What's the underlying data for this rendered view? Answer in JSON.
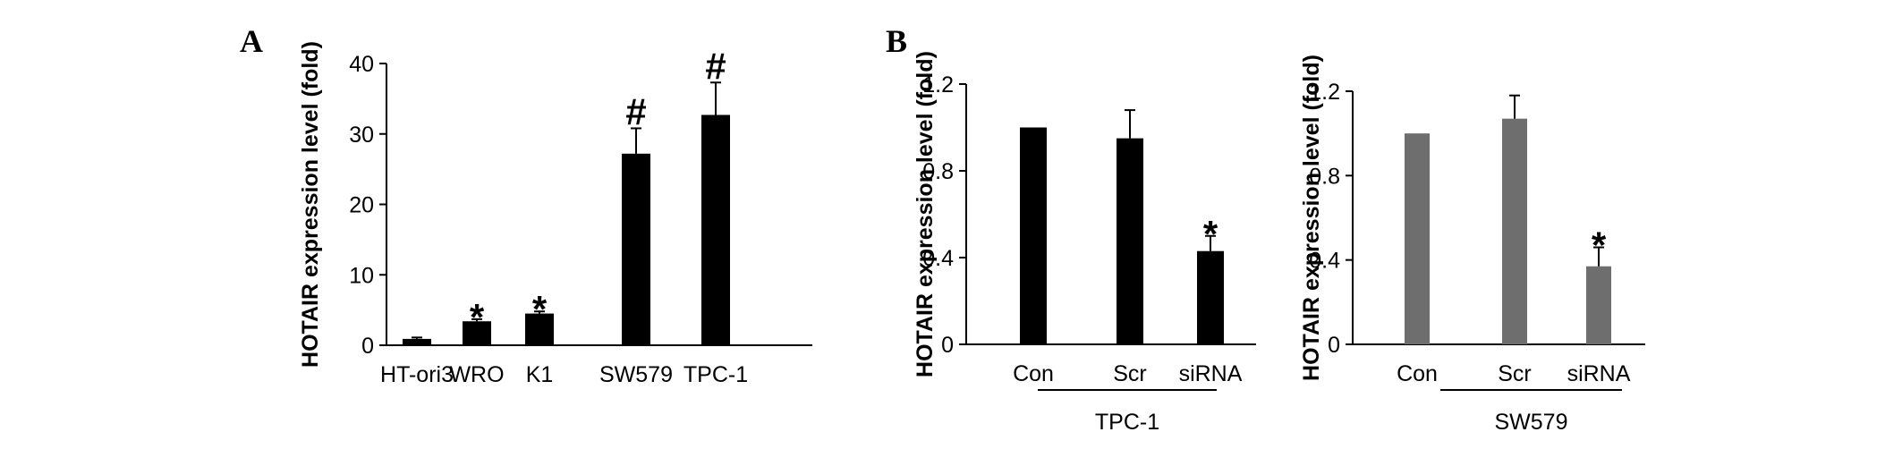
{
  "panels": {
    "a": "A",
    "b": "B"
  },
  "chart_data": [
    {
      "type": "bar",
      "categories": [
        "HT-ori3",
        "WRO",
        "K1",
        "SW579",
        "TPC-1"
      ],
      "values": [
        0.9,
        3.4,
        4.5,
        27.2,
        32.7
      ],
      "errors": [
        0.2,
        0.3,
        0.3,
        3.6,
        4.6
      ],
      "markers": [
        "",
        "*",
        "*",
        "#",
        "#"
      ],
      "ylabel": "HOTAIR expression level (fold)",
      "ylim": [
        0,
        40
      ],
      "yticks": [
        "0",
        "10",
        "20",
        "30",
        "40"
      ],
      "group_label": "",
      "bar_color": "#000000"
    },
    {
      "type": "bar",
      "categories": [
        "Con",
        "Scr",
        "siRNA"
      ],
      "values": [
        1.0,
        0.95,
        0.43
      ],
      "errors": [
        0.0,
        0.13,
        0.07
      ],
      "markers": [
        "",
        "",
        "*"
      ],
      "ylabel": "HOTAIR expression level (fold)",
      "ylim": [
        0,
        1.2
      ],
      "yticks": [
        "0",
        "0.4",
        "0.8",
        "1.2"
      ],
      "group_label": "TPC-1",
      "bar_color": "#000000"
    },
    {
      "type": "bar",
      "categories": [
        "Con",
        "Scr",
        "siRNA"
      ],
      "values": [
        1.0,
        1.07,
        0.37
      ],
      "errors": [
        0.0,
        0.11,
        0.09
      ],
      "markers": [
        "",
        "",
        "*"
      ],
      "ylabel": "HOTAIR expression level (fold)",
      "ylim": [
        0,
        1.2
      ],
      "yticks": [
        "0",
        "0.4",
        "0.8",
        "1.2"
      ],
      "group_label": "SW579",
      "bar_color": "#6e6e6e"
    }
  ]
}
